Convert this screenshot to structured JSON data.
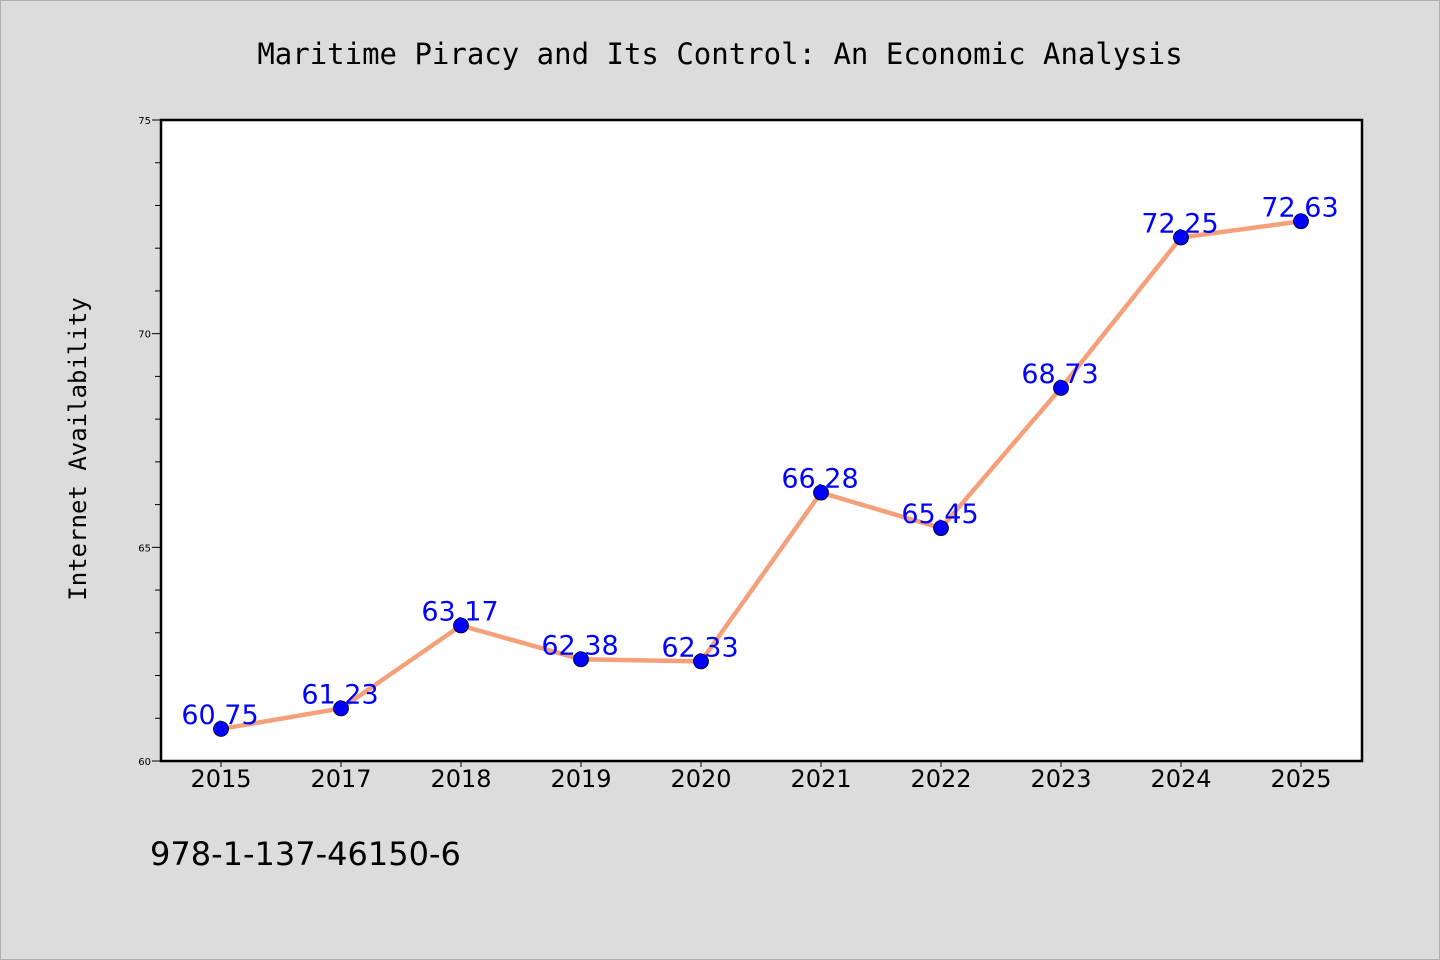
{
  "chart_data": {
    "type": "line",
    "title": "Maritime Piracy and Its Control: An Economic Analysis",
    "xlabel": "",
    "ylabel": "Internet Availability",
    "categories": [
      "2015",
      "2017",
      "2018",
      "2019",
      "2020",
      "2021",
      "2022",
      "2023",
      "2024",
      "2025"
    ],
    "values": [
      60.75,
      61.23,
      63.17,
      62.38,
      62.33,
      66.28,
      65.45,
      68.73,
      72.25,
      72.63
    ],
    "data_labels": [
      "60.75",
      "61.23",
      "63.17",
      "62.38",
      "62.33",
      "66.28",
      "65.45",
      "68.73",
      "72.25",
      "72.63"
    ],
    "ylim": [
      60,
      75
    ],
    "yticks": [
      "60",
      "65",
      "70",
      "75"
    ],
    "grid": false,
    "legend": "none",
    "colors": {
      "line": "#f4a07a",
      "marker": "#0000ff",
      "label": "#0000ff",
      "background": "#dcdcdc",
      "plot_background": "#ffffff"
    }
  },
  "footer": {
    "isbn": "978-1-137-46150-6"
  }
}
